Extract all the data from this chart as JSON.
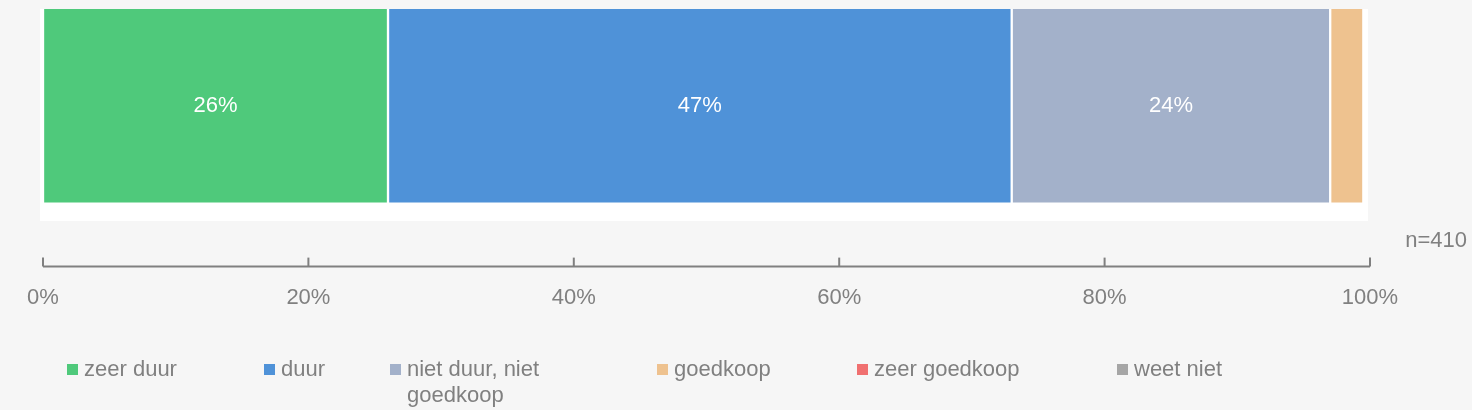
{
  "chart_data": {
    "type": "bar",
    "orientation": "horizontal",
    "stacked": true,
    "categories": [
      null
    ],
    "series": [
      {
        "name": "zeer duur",
        "color": "#4fc97b",
        "values": [
          26
        ],
        "value_labels": [
          "26%"
        ]
      },
      {
        "name": "duur",
        "color": "#4f92d8",
        "values": [
          47
        ],
        "value_labels": [
          "47%"
        ]
      },
      {
        "name": "niet duur, niet goedkoop",
        "color": "#a3b1ca",
        "values": [
          24
        ],
        "value_labels": [
          "24%"
        ]
      },
      {
        "name": "goedkoop",
        "color": "#eec28f",
        "values": [
          2.5
        ],
        "value_labels": [
          null
        ]
      },
      {
        "name": "zeer goedkoop",
        "color": "#f07070",
        "values": [
          null
        ],
        "value_labels": [
          null
        ]
      },
      {
        "name": "weet niet",
        "color": "#a6a6a6",
        "values": [
          null
        ],
        "value_labels": [
          null
        ]
      }
    ],
    "xlim": [
      0,
      100
    ],
    "xticks": [
      {
        "value": 0,
        "label": "0%"
      },
      {
        "value": 20,
        "label": "20%"
      },
      {
        "value": 40,
        "label": "40%"
      },
      {
        "value": 60,
        "label": "60%"
      },
      {
        "value": 80,
        "label": "80%"
      },
      {
        "value": 100,
        "label": "100%"
      }
    ],
    "legend": "bottom",
    "annotations": [
      "n=410"
    ]
  }
}
